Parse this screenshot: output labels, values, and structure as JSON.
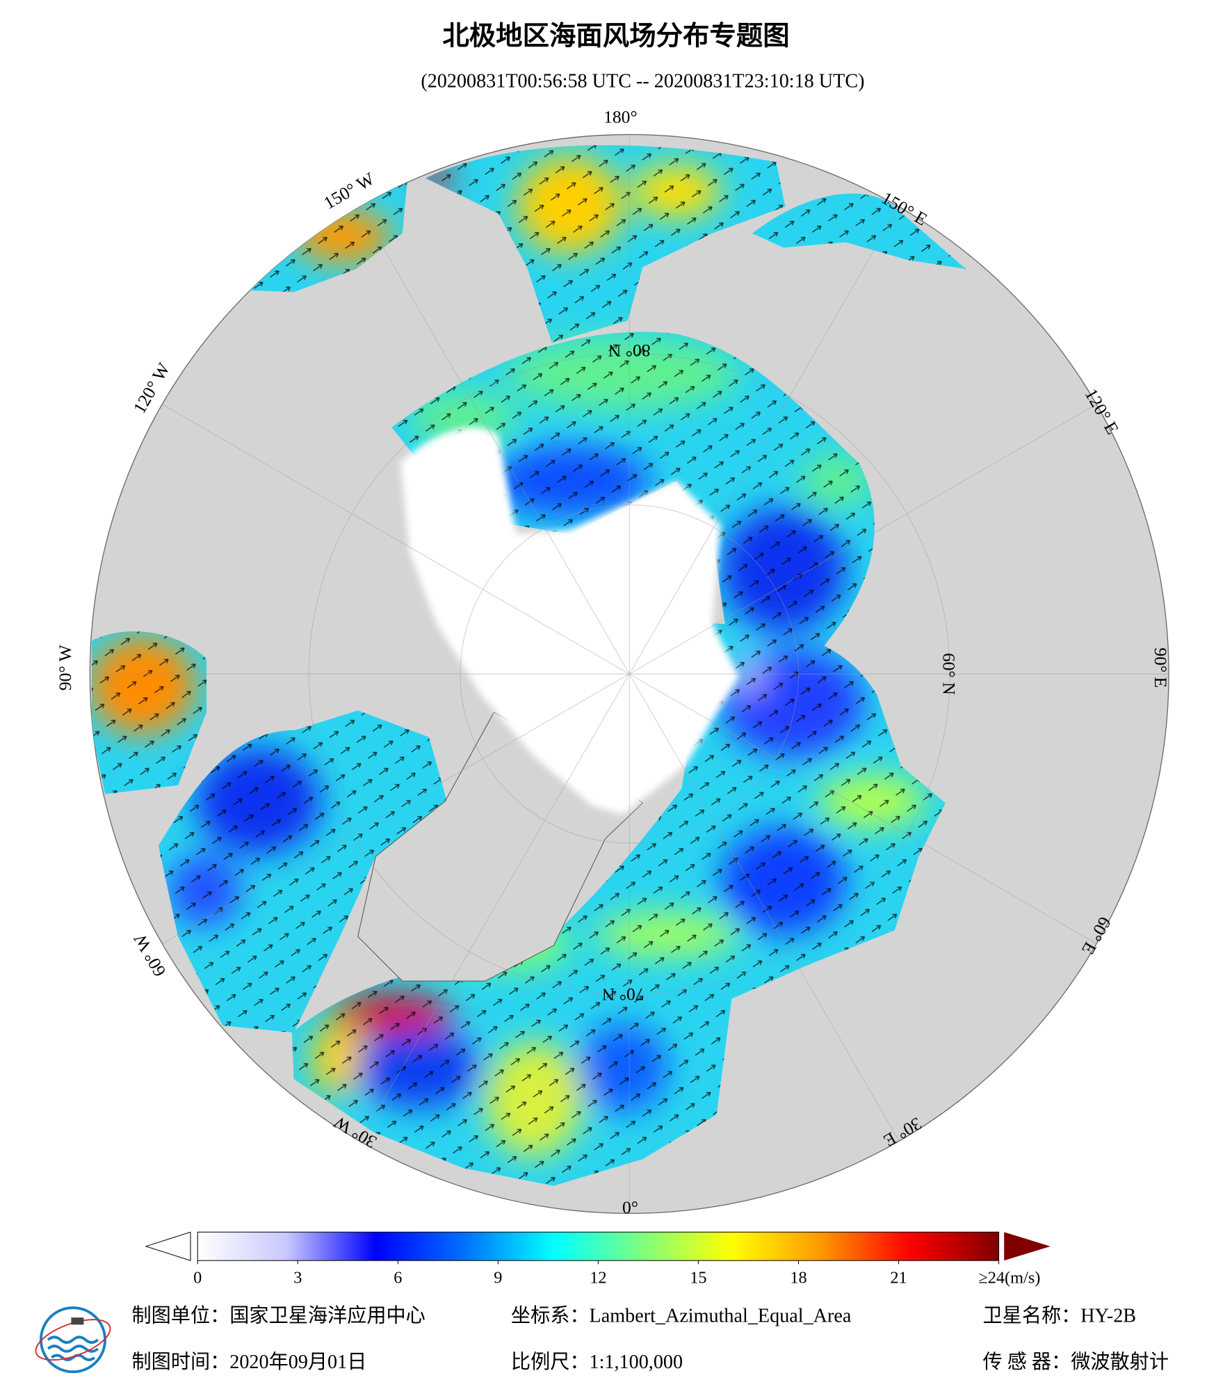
{
  "header": {
    "title": "北极地区海面风场分布专题图",
    "subtitle": "(20200831T00:56:58 UTC -- 20200831T23:10:18 UTC)"
  },
  "map": {
    "longitude_labels": [
      "180°",
      "150° E",
      "120° E",
      "90° E",
      "60° E",
      "30° E",
      "0°",
      "30° W",
      "60° W",
      "90° W",
      "120° W",
      "150° W"
    ],
    "latitude_labels": [
      "60° N",
      "80° N",
      "70° N"
    ]
  },
  "colorbar": {
    "lim": [
      0,
      24
    ],
    "ticks": [
      0,
      3,
      6,
      9,
      12,
      15,
      18,
      21,
      {
        "value": 24,
        "label": "≥24(m/s)"
      }
    ],
    "colors": [
      "#ffffff",
      "#c8c8ff",
      "#0000ff",
      "#0070ff",
      "#00ffff",
      "#7fff7f",
      "#ffff00",
      "#ff9900",
      "#ff0000",
      "#800000"
    ]
  },
  "footer": {
    "unit": "制图单位：国家卫星海洋应用中心",
    "coordinate_system": "坐标系：Lambert_Azimuthal_Equal_Area",
    "satellite": "卫星名称：HY-2B",
    "date": "制图时间：2020年09月01日",
    "scale": "比例尺：1:1,100,000",
    "sensor": "传 感 器：微波散射计"
  }
}
